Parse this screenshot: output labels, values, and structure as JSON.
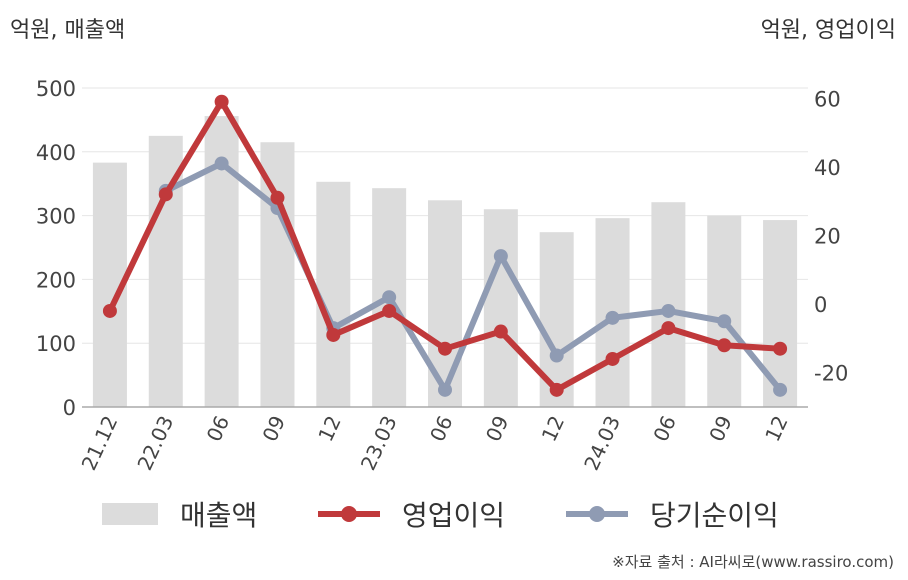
{
  "units": {
    "left": "억원, 매출액",
    "right": "억원, 영업이익"
  },
  "source": "※자료 출처 : AI라씨로(www.rassiro.com)",
  "colors": {
    "bars": "#dcdcdc",
    "operating": "#c0393b",
    "net": "#8f9bb3",
    "grid": "#e6e6e6"
  },
  "chart_data": {
    "type": "bar",
    "categories": [
      "21.12",
      "22.03",
      "06",
      "09",
      "12",
      "23.03",
      "06",
      "09",
      "12",
      "24.03",
      "06",
      "09",
      "12"
    ],
    "series": [
      {
        "name": "매출액",
        "type": "bar",
        "axis": "left",
        "values": [
          383,
          425,
          456,
          415,
          353,
          343,
          324,
          310,
          274,
          296,
          321,
          300,
          293
        ]
      },
      {
        "name": "영업이익",
        "type": "line",
        "axis": "right",
        "values": [
          -2,
          32,
          59,
          31,
          -9,
          -2,
          -13,
          -8,
          -25,
          -16,
          -7,
          -12,
          -13
        ]
      },
      {
        "name": "당기순이익",
        "type": "line",
        "axis": "right",
        "values": null
      }
    ],
    "net_values": [
      null,
      33,
      41,
      28,
      -7,
      2,
      -25,
      14,
      -15,
      -4,
      -2,
      -5,
      -25
    ],
    "ylim_left": [
      0,
      500
    ],
    "yticks_left": [
      0,
      100,
      200,
      300,
      400,
      500
    ],
    "ylim_right": [
      -30,
      63
    ],
    "yticks_right": [
      -20,
      0,
      20,
      40,
      60
    ],
    "grid": true,
    "legend_position": "bottom"
  },
  "legend": [
    "매출액",
    "영업이익",
    "당기순이익"
  ]
}
